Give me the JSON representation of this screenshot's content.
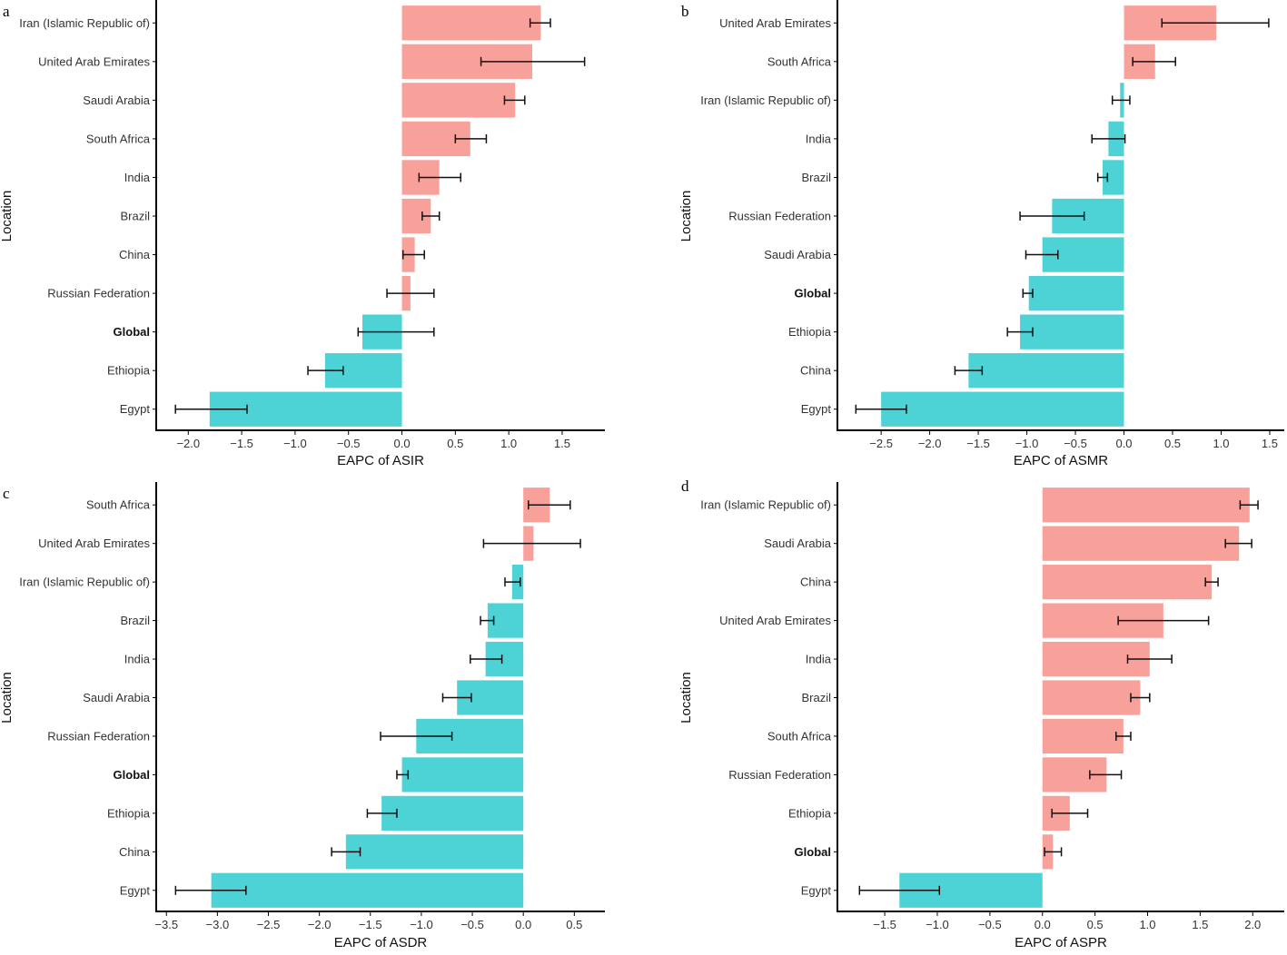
{
  "colors": {
    "positive": "#f8a19b",
    "negative": "#4dd2d6",
    "axis": "#000000",
    "text": "#333333"
  },
  "chart_data": [
    {
      "panel": "a",
      "type": "bar",
      "orientation": "horizontal",
      "xlabel": "EAPC of ASIR",
      "ylabel": "Location",
      "xlim": [
        -2.3,
        1.9
      ],
      "xticks": [
        -2.0,
        -1.5,
        -1.0,
        -0.5,
        0.0,
        0.5,
        1.0,
        1.5
      ],
      "xtick_labels": [
        "−2.0",
        "−1.5",
        "−1.0",
        "−0.5",
        "0.0",
        "0.5",
        "1.0",
        "1.5"
      ],
      "categories": [
        "Iran (Islamic Republic of)",
        "United Arab Emirates",
        "Saudi Arabia",
        "South Africa",
        "India",
        "Brazil",
        "China",
        "Russian Federation",
        "Global",
        "Ethiopia",
        "Egypt"
      ],
      "values": [
        1.3,
        1.22,
        1.06,
        0.64,
        0.35,
        0.27,
        0.12,
        0.08,
        -0.37,
        -0.72,
        -1.8
      ],
      "lower": [
        1.2,
        0.74,
        0.96,
        0.5,
        0.16,
        0.19,
        0.01,
        -0.14,
        -0.41,
        -0.88,
        -2.12
      ],
      "upper": [
        1.39,
        1.71,
        1.15,
        0.79,
        0.55,
        0.35,
        0.21,
        0.3,
        0.3,
        -0.55,
        -1.45
      ],
      "bold_categories": [
        "Global"
      ]
    },
    {
      "panel": "b",
      "type": "bar",
      "orientation": "horizontal",
      "xlabel": "EAPC of ASMR",
      "ylabel": "Location",
      "xlim": [
        -2.95,
        1.65
      ],
      "xticks": [
        -2.5,
        -2.0,
        -1.5,
        -1.0,
        -0.5,
        0.0,
        0.5,
        1.0,
        1.5
      ],
      "xtick_labels": [
        "−2.5",
        "−2.0",
        "−1.5",
        "−1.0",
        "−0.5",
        "0.0",
        "0.5",
        "1.0",
        "1.5"
      ],
      "categories": [
        "United Arab Emirates",
        "South Africa",
        "Iran (Islamic Republic of)",
        "India",
        "Brazil",
        "Russian Federation",
        "Saudi Arabia",
        "Global",
        "Ethiopia",
        "China",
        "Egypt"
      ],
      "values": [
        0.95,
        0.32,
        -0.04,
        -0.16,
        -0.22,
        -0.74,
        -0.84,
        -0.98,
        -1.07,
        -1.6,
        -2.5
      ],
      "lower": [
        0.39,
        0.09,
        -0.12,
        -0.33,
        -0.27,
        -1.07,
        -1.01,
        -1.04,
        -1.2,
        -1.74,
        -2.76
      ],
      "upper": [
        1.49,
        0.53,
        0.06,
        0.01,
        -0.17,
        -0.41,
        -0.68,
        -0.94,
        -0.94,
        -1.46,
        -2.24
      ],
      "bold_categories": [
        "Global"
      ]
    },
    {
      "panel": "c",
      "type": "bar",
      "orientation": "horizontal",
      "xlabel": "EAPC of ASDR",
      "ylabel": "Location",
      "xlim": [
        -3.6,
        0.8
      ],
      "xticks": [
        -3.5,
        -3.0,
        -2.5,
        -2.0,
        -1.5,
        -1.0,
        -0.5,
        0.0,
        0.5
      ],
      "xtick_labels": [
        "−3.5",
        "−3.0",
        "−2.5",
        "−2.0",
        "−1.5",
        "−1.0",
        "−0.5",
        "0.0",
        "0.5"
      ],
      "categories": [
        "South Africa",
        "United Arab Emirates",
        "Iran (Islamic Republic of)",
        "Brazil",
        "India",
        "Saudi Arabia",
        "Russian Federation",
        "Global",
        "Ethiopia",
        "China",
        "Egypt"
      ],
      "values": [
        0.26,
        0.1,
        -0.11,
        -0.35,
        -0.37,
        -0.65,
        -1.05,
        -1.19,
        -1.39,
        -1.74,
        -3.06
      ],
      "lower": [
        0.05,
        -0.39,
        -0.18,
        -0.42,
        -0.52,
        -0.79,
        -1.4,
        -1.24,
        -1.53,
        -1.88,
        -3.41
      ],
      "upper": [
        0.46,
        0.56,
        -0.03,
        -0.29,
        -0.21,
        -0.51,
        -0.7,
        -1.13,
        -1.24,
        -1.6,
        -2.72
      ],
      "bold_categories": [
        "Global"
      ]
    },
    {
      "panel": "d",
      "type": "bar",
      "orientation": "horizontal",
      "xlabel": "EAPC of ASPR",
      "ylabel": "Location",
      "xlim": [
        -1.95,
        2.3
      ],
      "xticks": [
        -1.5,
        -1.0,
        -0.5,
        0.0,
        0.5,
        1.0,
        1.5,
        2.0
      ],
      "xtick_labels": [
        "−1.5",
        "−1.0",
        "−0.5",
        "0.0",
        "0.5",
        "1.0",
        "1.5",
        "2.0"
      ],
      "categories": [
        "Iran (Islamic Republic of)",
        "Saudi Arabia",
        "China",
        "United Arab Emirates",
        "India",
        "Brazil",
        "South Africa",
        "Russian Federation",
        "Ethiopia",
        "Global",
        "Egypt"
      ],
      "values": [
        1.97,
        1.87,
        1.61,
        1.15,
        1.02,
        0.93,
        0.77,
        0.61,
        0.26,
        0.1,
        -1.36
      ],
      "lower": [
        1.88,
        1.74,
        1.55,
        0.72,
        0.81,
        0.84,
        0.7,
        0.45,
        0.09,
        0.02,
        -1.74
      ],
      "upper": [
        2.05,
        1.99,
        1.67,
        1.58,
        1.23,
        1.02,
        0.84,
        0.75,
        0.43,
        0.18,
        -0.98
      ],
      "bold_categories": [
        "Global"
      ]
    }
  ]
}
